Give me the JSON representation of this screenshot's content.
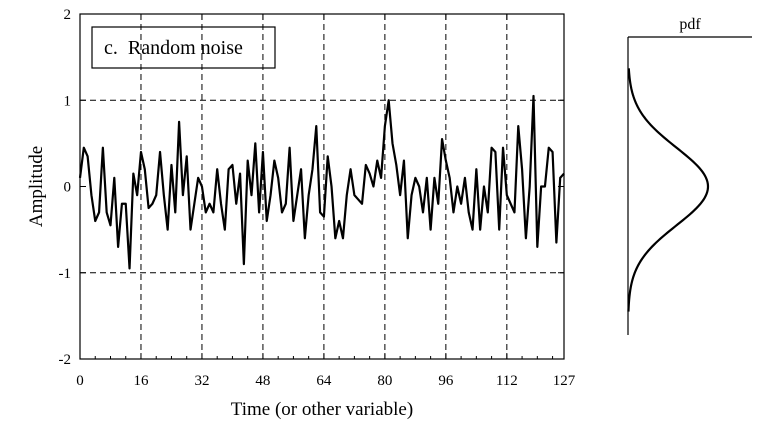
{
  "chart_data": [
    {
      "type": "line",
      "title": "",
      "xlabel": "Time (or other variable)",
      "ylabel": "Amplitude",
      "annotation": "c.  Random noise",
      "xlim": [
        0,
        127
      ],
      "ylim": [
        -2,
        2
      ],
      "xticks": [
        0,
        16,
        32,
        48,
        64,
        80,
        96,
        112,
        127
      ],
      "yticks": [
        -2,
        -1,
        0,
        1,
        2
      ],
      "xgrid": [
        16,
        32,
        48,
        64,
        80,
        96,
        112
      ],
      "ygrid": [
        -1,
        1
      ],
      "grid": true,
      "legend": "none",
      "series": [
        {
          "x": [
            0,
            1,
            2,
            3,
            4,
            5,
            6,
            7,
            8,
            9,
            10,
            11,
            12,
            13,
            14,
            15,
            16,
            17,
            18,
            19,
            20,
            21,
            22,
            23,
            24,
            25,
            26,
            27,
            28,
            29,
            30,
            31,
            32,
            33,
            34,
            35,
            36,
            37,
            38,
            39,
            40,
            41,
            42,
            43,
            44,
            45,
            46,
            47,
            48,
            49,
            50,
            51,
            52,
            53,
            54,
            55,
            56,
            57,
            58,
            59,
            60,
            61,
            62,
            63,
            64,
            65,
            66,
            67,
            68,
            69,
            70,
            71,
            72,
            73,
            74,
            75,
            76,
            77,
            78,
            79,
            80,
            81,
            82,
            83,
            84,
            85,
            86,
            87,
            88,
            89,
            90,
            91,
            92,
            93,
            94,
            95,
            96,
            97,
            98,
            99,
            100,
            101,
            102,
            103,
            104,
            105,
            106,
            107,
            108,
            109,
            110,
            111,
            112,
            113,
            114,
            115,
            116,
            117,
            118,
            119,
            120,
            121,
            122,
            123,
            124,
            125,
            126,
            127
          ],
          "values": [
            0.1,
            0.45,
            0.35,
            -0.1,
            -0.4,
            -0.3,
            0.45,
            -0.3,
            -0.45,
            0.1,
            -0.7,
            -0.2,
            -0.2,
            -0.95,
            0.15,
            -0.1,
            0.4,
            0.2,
            -0.25,
            -0.2,
            -0.1,
            0.4,
            -0.1,
            -0.5,
            0.25,
            -0.3,
            0.75,
            -0.1,
            0.35,
            -0.5,
            -0.2,
            0.1,
            0.0,
            -0.3,
            -0.2,
            -0.3,
            0.2,
            -0.2,
            -0.5,
            0.2,
            0.25,
            -0.2,
            0.15,
            -0.9,
            0.3,
            -0.1,
            0.5,
            -0.3,
            0.4,
            -0.4,
            -0.1,
            0.3,
            0.1,
            -0.3,
            -0.2,
            0.45,
            -0.4,
            -0.1,
            0.2,
            -0.6,
            -0.1,
            0.2,
            0.7,
            -0.3,
            -0.35,
            0.35,
            0.0,
            -0.6,
            -0.4,
            -0.6,
            -0.1,
            0.2,
            -0.1,
            -0.15,
            -0.2,
            0.25,
            0.15,
            0.0,
            0.3,
            0.1,
            0.7,
            1.0,
            0.5,
            0.25,
            -0.1,
            0.3,
            -0.6,
            -0.1,
            0.1,
            0.0,
            -0.3,
            0.1,
            -0.5,
            0.1,
            -0.2,
            0.55,
            0.3,
            0.1,
            -0.3,
            0.0,
            -0.2,
            0.1,
            -0.3,
            -0.5,
            0.2,
            -0.5,
            0.0,
            -0.3,
            0.45,
            0.4,
            -0.5,
            0.45,
            -0.1,
            -0.2,
            -0.3,
            0.7,
            0.2,
            -0.6,
            0.0,
            1.05,
            -0.7,
            0.0,
            0.0,
            0.45,
            0.4,
            -0.65,
            0.1,
            0.15
          ]
        }
      ]
    },
    {
      "type": "line",
      "title": "pdf",
      "xlabel": "",
      "ylabel": "",
      "ylim": [
        -2,
        2
      ],
      "grid": false,
      "legend": "none",
      "series": [
        {
          "distribution": "gaussian",
          "mean": 0,
          "sd": 0.45,
          "support": [
            -1.45,
            1.37
          ]
        }
      ]
    }
  ]
}
